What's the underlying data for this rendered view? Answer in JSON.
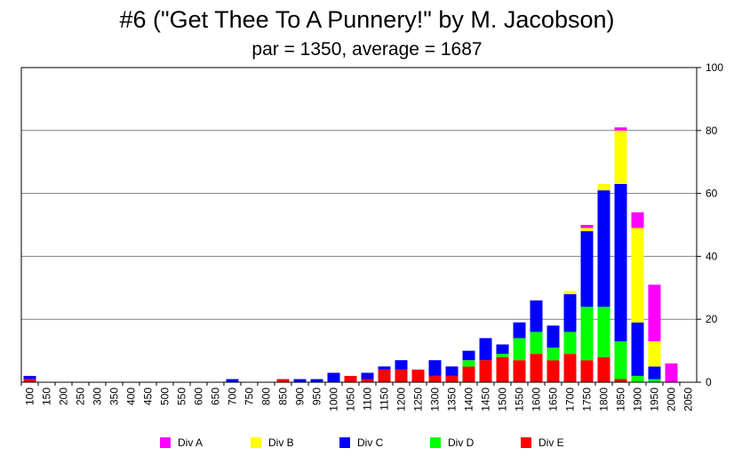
{
  "chart_data": {
    "type": "bar",
    "stacked": true,
    "title": "#6 (\"Get Thee To A Punnery!\" by M. Jacobson)",
    "subtitle": "par = 1350, average = 1687",
    "categories": [
      "100",
      "150",
      "200",
      "250",
      "300",
      "350",
      "400",
      "450",
      "500",
      "550",
      "600",
      "650",
      "700",
      "750",
      "800",
      "850",
      "900",
      "950",
      "1000",
      "1050",
      "1100",
      "1150",
      "1200",
      "1250",
      "1300",
      "1350",
      "1400",
      "1450",
      "1500",
      "1550",
      "1600",
      "1650",
      "1700",
      "1750",
      "1800",
      "1850",
      "1900",
      "1950",
      "2000",
      "2050"
    ],
    "ylim": [
      0,
      100
    ],
    "yticks": [
      "0",
      "20",
      "40",
      "60",
      "80",
      "100"
    ],
    "grid": true,
    "legend_position": "bottom",
    "series": [
      {
        "name": "Div E",
        "color": "#ff0000",
        "values": [
          1,
          0,
          0,
          0,
          0,
          0,
          0,
          0,
          0,
          0,
          0,
          0,
          0,
          0,
          0,
          1,
          0,
          0,
          0,
          2,
          1,
          4,
          4,
          4,
          2,
          2,
          5,
          7,
          8,
          7,
          9,
          7,
          9,
          7,
          8,
          1,
          0,
          0,
          0,
          0
        ]
      },
      {
        "name": "Div D",
        "color": "#00ff00",
        "values": [
          0,
          0,
          0,
          0,
          0,
          0,
          0,
          0,
          0,
          0,
          0,
          0,
          0,
          0,
          0,
          0,
          0,
          0,
          0,
          0,
          0,
          0,
          0,
          0,
          0,
          0,
          2,
          0,
          1,
          7,
          7,
          4,
          7,
          17,
          16,
          12,
          2,
          1,
          0,
          0
        ]
      },
      {
        "name": "Div C",
        "color": "#0000ff",
        "values": [
          1,
          0,
          0,
          0,
          0,
          0,
          0,
          0,
          0,
          0,
          0,
          0,
          1,
          0,
          0,
          0,
          1,
          1,
          3,
          0,
          2,
          1,
          3,
          0,
          5,
          3,
          3,
          7,
          3,
          5,
          10,
          7,
          12,
          24,
          37,
          50,
          17,
          4,
          0,
          0
        ]
      },
      {
        "name": "Div B",
        "color": "#ffff00",
        "values": [
          0,
          0,
          0,
          0,
          0,
          0,
          0,
          0,
          0,
          0,
          0,
          0,
          0,
          0,
          0,
          0,
          0,
          0,
          0,
          0,
          0,
          0,
          0,
          0,
          0,
          0,
          0,
          0,
          0,
          0,
          0,
          0,
          1,
          1,
          2,
          17,
          30,
          8,
          0,
          0
        ]
      },
      {
        "name": "Div A",
        "color": "#ff00ff",
        "values": [
          0,
          0,
          0,
          0,
          0,
          0,
          0,
          0,
          0,
          0,
          0,
          0,
          0,
          0,
          0,
          0,
          0,
          0,
          0,
          0,
          0,
          0,
          0,
          0,
          0,
          0,
          0,
          0,
          0,
          0,
          0,
          0,
          0,
          1,
          0,
          1,
          5,
          18,
          6,
          0
        ]
      }
    ],
    "legend_order": [
      "Div A",
      "Div B",
      "Div C",
      "Div D",
      "Div E"
    ]
  }
}
